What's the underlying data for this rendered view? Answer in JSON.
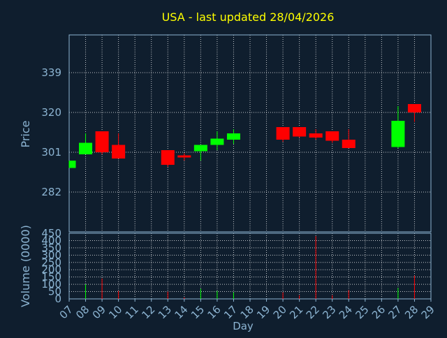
{
  "chart_data": {
    "type": "candlestick",
    "title": "USA - last updated 28/04/2026",
    "ylabel": "Price",
    "volume_ylabel": "Volume (0000)",
    "xlabel": "Day",
    "ylim": [
      263,
      357
    ],
    "price_ticks": [
      282,
      301,
      320,
      339
    ],
    "volume_ylim": [
      0,
      450
    ],
    "volume_ticks": [
      0,
      50,
      100,
      150,
      200,
      250,
      300,
      350,
      400,
      450
    ],
    "x_ticks": [
      "07",
      "08",
      "09",
      "10",
      "11",
      "12",
      "13",
      "14",
      "15",
      "16",
      "17",
      "18",
      "19",
      "20",
      "21",
      "22",
      "23",
      "24",
      "25",
      "26",
      "27",
      "28",
      "29"
    ],
    "colors": {
      "up": "#00ff00",
      "down": "#ff0000",
      "title": "#ffff00",
      "axis_text": "#8cb4d2",
      "grid": "#ffffff",
      "frame": "#8cb4d2",
      "background": "#0f1e2e"
    },
    "candles": [
      {
        "day": "07",
        "open": 293.5,
        "high": 297,
        "low": 293.5,
        "close": 297,
        "volume": 0
      },
      {
        "day": "08",
        "open": 300,
        "high": 310,
        "low": 300,
        "close": 305.5,
        "volume": 100
      },
      {
        "day": "09",
        "open": 311,
        "high": 311,
        "low": 300,
        "close": 301,
        "volume": 140
      },
      {
        "day": "10",
        "open": 304.5,
        "high": 310,
        "low": 298,
        "close": 298,
        "volume": 55
      },
      {
        "day": "13",
        "open": 302,
        "high": 302,
        "low": 294,
        "close": 295,
        "volume": 50
      },
      {
        "day": "14",
        "open": 299.5,
        "high": 300.5,
        "low": 297,
        "close": 298.5,
        "volume": 10
      },
      {
        "day": "15",
        "open": 301.5,
        "high": 304.5,
        "low": 297,
        "close": 304.5,
        "volume": 70
      },
      {
        "day": "16",
        "open": 304.5,
        "high": 311,
        "low": 302,
        "close": 307.5,
        "volume": 55
      },
      {
        "day": "17",
        "open": 307,
        "high": 312,
        "low": 305,
        "close": 310,
        "volume": 45
      },
      {
        "day": "20",
        "open": 313,
        "high": 313,
        "low": 306,
        "close": 307,
        "volume": 45
      },
      {
        "day": "21",
        "open": 313,
        "high": 313,
        "low": 308,
        "close": 308.5,
        "volume": 25
      },
      {
        "day": "22",
        "open": 310,
        "high": 312,
        "low": 307,
        "close": 308,
        "volume": 430
      },
      {
        "day": "23",
        "open": 311,
        "high": 311,
        "low": 305.5,
        "close": 306.5,
        "volume": 25
      },
      {
        "day": "24",
        "open": 307,
        "high": 312,
        "low": 303,
        "close": 303,
        "volume": 60
      },
      {
        "day": "27",
        "open": 303.5,
        "high": 323,
        "low": 303,
        "close": 316,
        "volume": 75
      },
      {
        "day": "28",
        "open": 324,
        "high": 324,
        "low": 315.5,
        "close": 320,
        "volume": 160
      }
    ]
  }
}
